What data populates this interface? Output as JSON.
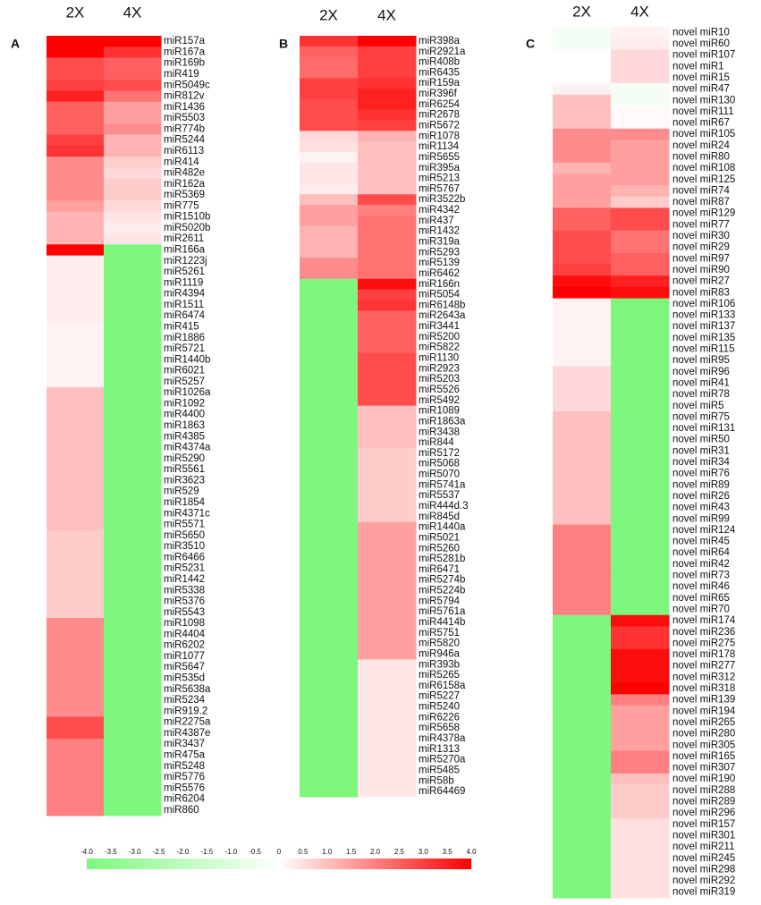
{
  "chart_data": [
    {
      "type": "heatmap",
      "panel_label": "A",
      "y_categories": [
        "miR157a",
        "miR167a",
        "miR169b",
        "miR419",
        "miR5049c",
        "miR812v",
        "miR1436",
        "miR5503",
        "miR774b",
        "miR5244",
        "miR6113",
        "miR414",
        "miR482e",
        "miR162a",
        "miR5369",
        "miR775",
        "miR1510b",
        "miR5020b",
        "miR2611",
        "miR166a",
        "miR1223j",
        "miR5261",
        "miR1119",
        "miR4394",
        "miR1511",
        "miR6474",
        "miR415",
        "miR1886",
        "miR5721",
        "miR1440b",
        "miR6021",
        "miR5257",
        "miR1026a",
        "miR1092",
        "miR4400",
        "miR1863",
        "miR4385",
        "miR4374a",
        "miR5290",
        "miR5561",
        "miR3623",
        "miR529",
        "miR1854",
        "miR4371c",
        "miR5571",
        "miR5650",
        "miR3510",
        "miR6466",
        "miR5231",
        "miR1442",
        "miR5338",
        "miR5376",
        "miR5543",
        "miR1098",
        "miR4404",
        "miR6202",
        "miR1077",
        "miR5647",
        "miR535d",
        "miR5638a",
        "miR5234",
        "miR919.2",
        "miR2275a",
        "miR4387e",
        "miR3437",
        "miR475a",
        "miR5248",
        "miR5776",
        "miR5576",
        "miR6204",
        "miR860"
      ],
      "series": [
        {
          "name": "2X",
          "values": [
            4.0,
            4.0,
            2.8,
            2.8,
            3.0,
            3.5,
            2.5,
            2.5,
            2.5,
            3.0,
            3.2,
            1.8,
            1.8,
            1.8,
            1.8,
            1.5,
            1.2,
            1.2,
            1.2,
            4.0,
            0.3,
            0.3,
            0.3,
            0.3,
            0.3,
            0.3,
            0.2,
            0.2,
            0.2,
            0.2,
            0.2,
            0.2,
            1.0,
            1.0,
            1.0,
            1.0,
            1.0,
            1.0,
            1.0,
            1.0,
            1.0,
            1.0,
            1.0,
            1.0,
            1.0,
            0.8,
            0.8,
            0.8,
            0.8,
            0.8,
            0.8,
            0.8,
            0.8,
            1.8,
            1.8,
            1.8,
            1.8,
            1.8,
            1.8,
            1.8,
            1.8,
            1.8,
            2.8,
            2.8,
            2.0,
            2.0,
            2.0,
            2.0,
            2.0,
            2.0,
            2.0
          ]
        },
        {
          "name": "4X",
          "values": [
            4.0,
            3.2,
            2.5,
            2.5,
            2.8,
            2.2,
            1.5,
            1.5,
            1.8,
            1.2,
            1.2,
            0.8,
            0.6,
            0.8,
            0.8,
            0.6,
            0.4,
            0.3,
            0.4,
            -4,
            -4,
            -4,
            -4,
            -4,
            -4,
            -4,
            -4,
            -4,
            -4,
            -4,
            -4,
            -4,
            -4,
            -4,
            -4,
            -4,
            -4,
            -4,
            -4,
            -4,
            -4,
            -4,
            -4,
            -4,
            -4,
            -4,
            -4,
            -4,
            -4,
            -4,
            -4,
            -4,
            -4,
            -4,
            -4,
            -4,
            -4,
            -4,
            -4,
            -4,
            -4,
            -4,
            -4,
            -4,
            -4,
            -4,
            -4,
            -4,
            -4,
            -4,
            -4
          ]
        }
      ]
    },
    {
      "type": "heatmap",
      "panel_label": "B",
      "y_categories": [
        "miR398a",
        "miR2921a",
        "miR408b",
        "miR6435",
        "miR159a",
        "miR396f",
        "miR6254",
        "miR2678",
        "miR5672",
        "miR1078",
        "miR1134",
        "miR5655",
        "miR395a",
        "miR5213",
        "miR5767",
        "miR3522b",
        "miR4342",
        "miR437",
        "miR1432",
        "miR319a",
        "miR5293",
        "miR5139",
        "miR6462",
        "miR166n",
        "miR5054",
        "miR6148b",
        "miR2643a",
        "miR3441",
        "miR5200",
        "miR5822",
        "miR1130",
        "miR2923",
        "miR5203",
        "miR5526",
        "miR5492",
        "miR1089",
        "miR1863a",
        "miR3438",
        "miR844",
        "miR5172",
        "miR5068",
        "miR5070",
        "miR5741a",
        "miR5537",
        "miR444d.3",
        "miR845d",
        "miR1440a",
        "miR5021",
        "miR5260",
        "miR5281b",
        "miR6471",
        "miR5274b",
        "miR5224b",
        "miR5794",
        "miR5761a",
        "miR4414b",
        "miR5751",
        "miR5820",
        "miR946a",
        "miR393b",
        "miR5265",
        "miR6158a",
        "miR5227",
        "miR5240",
        "miR6226",
        "miR5658",
        "miR4378a",
        "miR1313",
        "miR5270a",
        "miR5485",
        "miR58b",
        "miR64469"
      ],
      "series": [
        {
          "name": "2X",
          "values": [
            3.2,
            2.5,
            2.3,
            2.3,
            3.0,
            3.0,
            2.8,
            2.8,
            2.8,
            0.6,
            0.5,
            0.2,
            0.4,
            0.4,
            0.3,
            1.0,
            1.5,
            1.5,
            1.2,
            1.2,
            1.2,
            1.8,
            1.8,
            -4,
            -4,
            -4,
            -4,
            -4,
            -4,
            -4,
            -4,
            -4,
            -4,
            -4,
            -4,
            -4,
            -4,
            -4,
            -4,
            -4,
            -4,
            -4,
            -4,
            -4,
            -4,
            -4,
            -4,
            -4,
            -4,
            -4,
            -4,
            -4,
            -4,
            -4,
            -4,
            -4,
            -4,
            -4,
            -4,
            -4,
            -4,
            -4,
            -4,
            -4,
            -4,
            -4,
            -4,
            -4,
            -4,
            -4,
            -4,
            -4
          ]
        },
        {
          "name": "4X",
          "values": [
            4.0,
            3.0,
            3.0,
            3.0,
            3.2,
            3.5,
            3.5,
            3.2,
            3.0,
            1.2,
            1.0,
            1.0,
            1.0,
            1.0,
            1.0,
            2.8,
            2.0,
            2.2,
            2.2,
            2.2,
            2.2,
            2.2,
            2.2,
            3.8,
            3.0,
            3.2,
            2.5,
            2.5,
            2.5,
            2.5,
            2.8,
            2.8,
            2.8,
            2.8,
            2.8,
            1.0,
            1.0,
            1.0,
            1.0,
            0.8,
            0.8,
            0.8,
            0.8,
            0.8,
            0.8,
            0.8,
            1.5,
            1.5,
            1.5,
            1.5,
            1.5,
            1.5,
            1.5,
            1.5,
            1.5,
            1.5,
            1.5,
            1.5,
            1.5,
            0.4,
            0.4,
            0.4,
            0.4,
            0.4,
            0.4,
            0.4,
            0.4,
            0.4,
            0.4,
            0.4,
            0.4,
            0.4
          ]
        }
      ]
    },
    {
      "type": "heatmap",
      "panel_label": "C",
      "y_categories": [
        "novel miR10",
        "novel miR60",
        "novel miR107",
        "novel miR1",
        "novel miR15",
        "novel miR47",
        "novel miR130",
        "novel miR111",
        "novel miR67",
        "novel miR105",
        "novel miR24",
        "novel miR80",
        "novel miR108",
        "novel miR125",
        "novel miR74",
        "novel miR87",
        "novel miR129",
        "novel miR77",
        "novel miR30",
        "novel miR29",
        "novel miR97",
        "novel miR90",
        "novel miR27",
        "novel miR83",
        "novel miR106",
        "novel miR133",
        "novel miR137",
        "novel miR135",
        "novel miR115",
        "novel miR95",
        "novel miR96",
        "novel miR41",
        "novel miR78",
        "novel miR5",
        "novel miR75",
        "novel miR131",
        "novel miR50",
        "novel miR31",
        "novel miR34",
        "novel miR76",
        "novel miR89",
        "novel miR26",
        "novel miR43",
        "novel miR99",
        "novel miR124",
        "novel miR45",
        "novel miR64",
        "novel miR42",
        "novel miR73",
        "novel miR46",
        "novel miR65",
        "novel miR70",
        "novel miR174",
        "novel miR236",
        "novel miR275",
        "novel miR178",
        "novel miR277",
        "novel miR312",
        "novel miR318",
        "novel miR139",
        "novel miR194",
        "novel miR265",
        "novel miR280",
        "novel miR305",
        "novel miR165",
        "novel miR307",
        "novel miR190",
        "novel miR288",
        "novel miR289",
        "novel miR296",
        "novel miR157",
        "novel miR301",
        "novel miR211",
        "novel miR245",
        "novel miR298",
        "novel miR292",
        "novel miR319"
      ],
      "series": [
        {
          "name": "2X",
          "values": [
            -0.3,
            -0.3,
            0.0,
            0.0,
            0.0,
            0.2,
            1.0,
            1.0,
            1.0,
            1.8,
            1.8,
            1.8,
            1.2,
            1.5,
            1.5,
            1.5,
            2.5,
            2.5,
            2.8,
            2.8,
            2.8,
            3.0,
            3.8,
            4.0,
            0.2,
            0.2,
            0.2,
            0.2,
            0.2,
            0.2,
            0.6,
            0.6,
            0.6,
            0.6,
            1.0,
            1.0,
            1.0,
            1.0,
            1.0,
            1.0,
            1.0,
            1.0,
            1.0,
            1.0,
            2.0,
            2.0,
            2.0,
            2.0,
            2.0,
            2.0,
            2.0,
            2.0,
            -4,
            -4,
            -4,
            -4,
            -4,
            -4,
            -4,
            -4,
            -4,
            -4,
            -4,
            -4,
            -4,
            -4,
            -4,
            -4,
            -4,
            -4,
            -4,
            -4,
            -4,
            -4,
            -4,
            -4,
            -4
          ]
        },
        {
          "name": "4X",
          "values": [
            0.2,
            0.3,
            0.6,
            0.6,
            0.6,
            -0.3,
            -0.3,
            0.1,
            0.1,
            1.8,
            1.5,
            1.5,
            1.5,
            1.5,
            1.2,
            0.8,
            2.8,
            2.8,
            2.2,
            2.2,
            2.5,
            2.5,
            3.5,
            3.8,
            -4,
            -4,
            -4,
            -4,
            -4,
            -4,
            -4,
            -4,
            -4,
            -4,
            -4,
            -4,
            -4,
            -4,
            -4,
            -4,
            -4,
            -4,
            -4,
            -4,
            -4,
            -4,
            -4,
            -4,
            -4,
            -4,
            -4,
            -4,
            3.8,
            3.2,
            3.2,
            3.8,
            3.8,
            3.8,
            4.0,
            2.0,
            1.5,
            1.5,
            1.5,
            1.5,
            2.0,
            2.0,
            1.0,
            0.8,
            0.8,
            0.8,
            0.5,
            0.5,
            0.5,
            0.5,
            0.5,
            0.5,
            0.5
          ]
        }
      ]
    }
  ],
  "colorbar": {
    "lim": [
      -4,
      4
    ],
    "colors": [
      "#7ef77e",
      "#ffffff",
      "#ff0000"
    ],
    "ticks": [
      {
        "value": -4,
        "label": "-4.0"
      },
      -3.5,
      {
        "value": -3,
        "label": "-3.0"
      },
      -2.5,
      {
        "value": -2,
        "label": "-2.0"
      },
      -1.5,
      {
        "value": -1,
        "label": "-1.0"
      },
      -0.5,
      0,
      0.5,
      {
        "value": 1,
        "label": "1.0"
      },
      1.5,
      {
        "value": 2,
        "label": "2.0"
      },
      2.5,
      {
        "value": 3,
        "label": "3.0"
      },
      3.5,
      {
        "value": 4,
        "label": "4.0"
      }
    ]
  }
}
